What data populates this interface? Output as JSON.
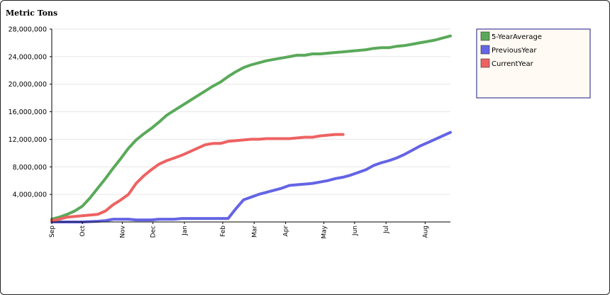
{
  "chart_data": {
    "type": "line",
    "ylabel": "Metric Tons",
    "ylim": [
      0,
      28000000
    ],
    "yticks": [
      {
        "value": 4000000,
        "label": "4,000,000"
      },
      {
        "value": 8000000,
        "label": "8,000,000"
      },
      {
        "value": 12000000,
        "label": "12,000,000"
      },
      {
        "value": 16000000,
        "label": "16,000,000"
      },
      {
        "value": 20000000,
        "label": "20,000,000"
      },
      {
        "value": 24000000,
        "label": "24,000,000"
      },
      {
        "value": 28000000,
        "label": "28,000,000"
      }
    ],
    "xlim": [
      0,
      52
    ],
    "xticks": [
      {
        "pos": 0,
        "label": "Sep"
      },
      {
        "pos": 4,
        "label": "Oct"
      },
      {
        "pos": 9.2,
        "label": "Nov"
      },
      {
        "pos": 13.2,
        "label": "Dec"
      },
      {
        "pos": 17.3,
        "label": "Jan"
      },
      {
        "pos": 22.3,
        "label": "Feb"
      },
      {
        "pos": 26.4,
        "label": "Mar"
      },
      {
        "pos": 30.5,
        "label": "Apr"
      },
      {
        "pos": 35.5,
        "label": "May"
      },
      {
        "pos": 39.5,
        "label": "Jun"
      },
      {
        "pos": 43.6,
        "label": "Jul"
      },
      {
        "pos": 48.7,
        "label": "Aug"
      }
    ],
    "grid": true,
    "legend_position": "top-right",
    "series": [
      {
        "name": "5-YearAverage",
        "color": "#5aa95a",
        "x": [
          0,
          1,
          2,
          3,
          4,
          5,
          6,
          7,
          8,
          9,
          10,
          11,
          12,
          13,
          14,
          15,
          16,
          17,
          18,
          19,
          20,
          21,
          22,
          23,
          24,
          25,
          26,
          27,
          28,
          29,
          30,
          31,
          32,
          33,
          34,
          35,
          36,
          37,
          38,
          39,
          40,
          41,
          42,
          43,
          44,
          45,
          46,
          47,
          48,
          49,
          50,
          51,
          52
        ],
        "values": [
          400000,
          700000,
          1100000,
          1600000,
          2300000,
          3500000,
          4900000,
          6300000,
          7800000,
          9200000,
          10700000,
          11900000,
          12800000,
          13600000,
          14500000,
          15500000,
          16200000,
          16900000,
          17600000,
          18300000,
          19000000,
          19700000,
          20300000,
          21100000,
          21800000,
          22400000,
          22800000,
          23100000,
          23400000,
          23600000,
          23800000,
          24000000,
          24200000,
          24200000,
          24400000,
          24400000,
          24500000,
          24600000,
          24700000,
          24800000,
          24900000,
          25000000,
          25200000,
          25300000,
          25300000,
          25500000,
          25600000,
          25800000,
          26000000,
          26200000,
          26400000,
          26700000,
          27000000
        ]
      },
      {
        "name": "PreviousYear",
        "color": "#6464e6",
        "x": [
          0,
          1,
          2,
          3,
          4,
          5,
          6,
          7,
          8,
          9,
          10,
          11,
          12,
          13,
          14,
          15,
          16,
          17,
          18,
          19,
          20,
          21,
          22,
          23,
          24,
          25,
          26,
          27,
          28,
          29,
          30,
          31,
          32,
          33,
          34,
          35,
          36,
          37,
          38,
          39,
          40,
          41,
          42,
          43,
          44,
          45,
          46,
          47,
          48,
          49,
          50,
          51,
          52
        ],
        "values": [
          0,
          0,
          0,
          0,
          0,
          50000,
          100000,
          200000,
          400000,
          400000,
          400000,
          300000,
          300000,
          300000,
          400000,
          400000,
          400000,
          500000,
          500000,
          500000,
          500000,
          500000,
          500000,
          500000,
          1900000,
          3200000,
          3600000,
          4000000,
          4300000,
          4600000,
          4900000,
          5300000,
          5400000,
          5500000,
          5600000,
          5800000,
          6000000,
          6300000,
          6500000,
          6800000,
          7200000,
          7600000,
          8200000,
          8600000,
          8900000,
          9300000,
          9800000,
          10400000,
          11000000,
          11500000,
          12000000,
          12500000,
          13000000
        ]
      },
      {
        "name": "CurrentYear",
        "color": "#ee6262",
        "x": [
          0,
          1,
          2,
          3,
          4,
          5,
          6,
          7,
          8,
          9,
          10,
          11,
          12,
          13,
          14,
          15,
          16,
          17,
          18,
          19,
          20,
          21,
          22,
          23,
          24,
          25,
          26,
          27,
          28,
          29,
          30,
          31,
          32,
          33,
          34,
          35,
          36,
          37,
          38
        ],
        "values": [
          200000,
          400000,
          700000,
          800000,
          900000,
          1000000,
          1100000,
          1600000,
          2500000,
          3200000,
          4000000,
          5600000,
          6700000,
          7600000,
          8400000,
          8900000,
          9300000,
          9700000,
          10200000,
          10700000,
          11200000,
          11400000,
          11400000,
          11700000,
          11800000,
          11900000,
          12000000,
          12000000,
          12100000,
          12100000,
          12100000,
          12100000,
          12200000,
          12300000,
          12300000,
          12500000,
          12600000,
          12700000,
          12700000
        ]
      }
    ]
  }
}
